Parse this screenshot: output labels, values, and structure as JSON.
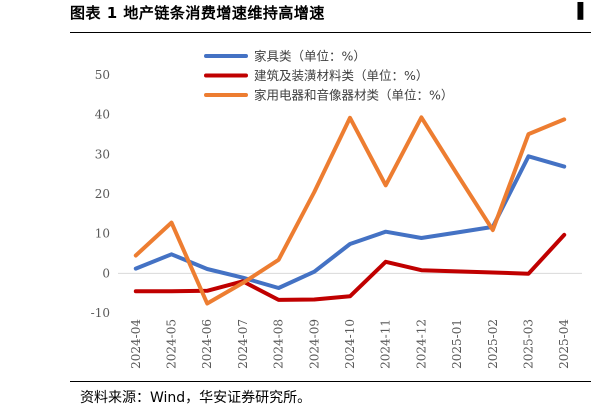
{
  "figure": {
    "title": "图表 1  地产链条消费增速维持高增速",
    "title_right": "▌",
    "source": "资料来源：Wind，华安证券研究所。"
  },
  "chart_data": {
    "type": "line",
    "title": "",
    "xlabel": "",
    "ylabel": "",
    "ylim": [
      -10,
      50
    ],
    "yticks": [
      -10,
      0,
      10,
      20,
      30,
      40,
      50
    ],
    "grid": false,
    "legend_position": "top-center",
    "categories": [
      "2024-04",
      "2024-05",
      "2024-06",
      "2024-07",
      "2024-08",
      "2024-09",
      "2024-10",
      "2024-11",
      "2024-12",
      "2025-01",
      "2025-02",
      "2025-03",
      "2025-04"
    ],
    "series": [
      {
        "name": "家具类（单位：%）",
        "color": "#4472C4",
        "values": [
          1.2,
          4.8,
          1.1,
          -1.1,
          -3.7,
          0.4,
          7.4,
          10.5,
          8.9,
          10.3,
          11.7,
          29.5,
          26.9
        ]
      },
      {
        "name": "建筑及装潢材料类（单位：%）",
        "color": "#C00000",
        "values": [
          -4.5,
          -4.5,
          -4.4,
          -2.0,
          -6.7,
          -6.6,
          -5.8,
          2.9,
          0.8,
          0.5,
          0.2,
          -0.1,
          9.7
        ]
      },
      {
        "name": "家用电器和音像器材类（单位：%）",
        "color": "#ED7D31",
        "values": [
          4.5,
          12.8,
          -7.6,
          -2.4,
          3.4,
          20.5,
          39.2,
          22.2,
          39.3,
          25.0,
          10.9,
          35.1,
          38.8
        ]
      }
    ]
  }
}
